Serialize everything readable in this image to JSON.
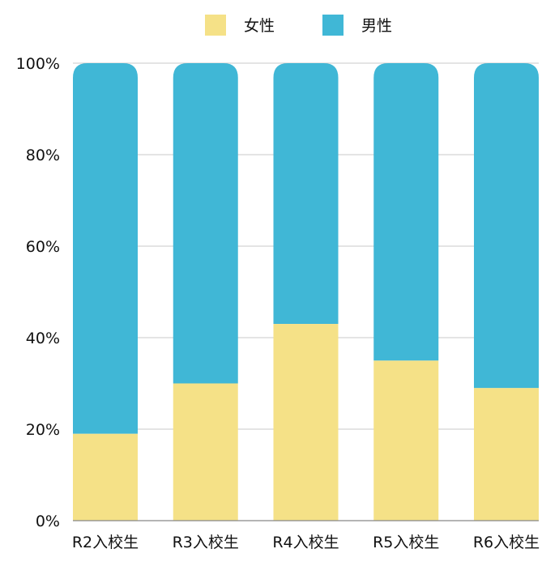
{
  "chart_data": {
    "type": "bar",
    "stacked": true,
    "percent_stacked": true,
    "categories": [
      "R2入校生",
      "R3入校生",
      "R4入校生",
      "R5入校生",
      "R6入校生"
    ],
    "series": [
      {
        "name": "女性",
        "color": "#f5e187",
        "values": [
          19,
          30,
          43,
          35,
          29
        ]
      },
      {
        "name": "男性",
        "color": "#40b7d6",
        "values": [
          81,
          70,
          57,
          65,
          71
        ]
      }
    ],
    "ylim": [
      0,
      100
    ],
    "yticks": [
      "0%",
      "20%",
      "40%",
      "60%",
      "80%",
      "100%"
    ],
    "grid": true,
    "legend_position": "top-center",
    "gridline_color": "#c8c8c8",
    "axis_color": "#888888"
  }
}
